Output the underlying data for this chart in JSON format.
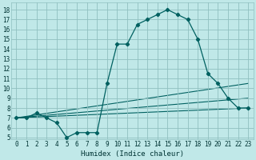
{
  "xlabel": "Humidex (Indice chaleur)",
  "bg_color": "#c0e8e8",
  "line_color": "#006060",
  "grid_color": "#90c0c0",
  "xlim": [
    -0.5,
    23.5
  ],
  "ylim": [
    4.8,
    18.7
  ],
  "xticks": [
    0,
    1,
    2,
    3,
    4,
    5,
    6,
    7,
    8,
    9,
    10,
    11,
    12,
    13,
    14,
    15,
    16,
    17,
    18,
    19,
    20,
    21,
    22,
    23
  ],
  "yticks": [
    5,
    6,
    7,
    8,
    9,
    10,
    11,
    12,
    13,
    14,
    15,
    16,
    17,
    18
  ],
  "main_x": [
    0,
    1,
    2,
    3,
    4,
    5,
    6,
    7,
    8,
    9,
    10,
    11,
    12,
    13,
    14,
    15,
    16,
    17,
    18,
    19,
    20,
    21,
    22,
    23
  ],
  "main_y": [
    7.0,
    7.0,
    7.5,
    7.0,
    6.5,
    5.0,
    5.5,
    5.5,
    5.5,
    10.5,
    14.5,
    14.5,
    16.5,
    17.0,
    17.5,
    18.0,
    17.5,
    17.0,
    15.0,
    11.5,
    10.5,
    9.0,
    8.0,
    8.0
  ],
  "linear_lines": [
    {
      "x0": 0,
      "y0": 7.0,
      "x1": 23,
      "y1": 8.0
    },
    {
      "x0": 0,
      "y0": 7.0,
      "x1": 23,
      "y1": 9.0
    },
    {
      "x0": 0,
      "y0": 7.0,
      "x1": 23,
      "y1": 10.5
    }
  ]
}
